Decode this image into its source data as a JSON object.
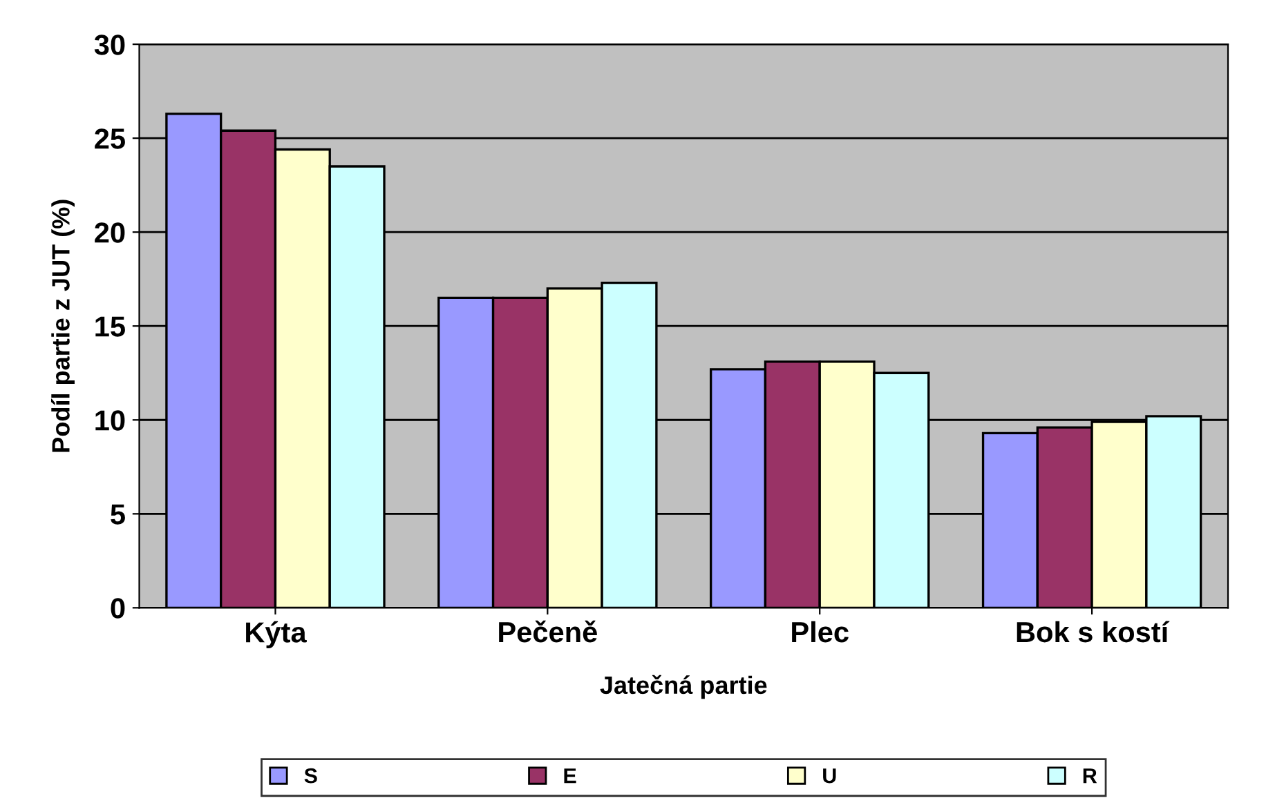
{
  "chart_data": {
    "type": "bar",
    "xlabel": "Jatečná partie",
    "ylabel": "Podíl partie z JUT (%)",
    "categories": [
      "Kýta",
      "Pečeně",
      "Plec",
      "Bok s kostí"
    ],
    "series": [
      {
        "name": "S",
        "color": "#9999ff",
        "values": [
          26.3,
          16.5,
          12.7,
          9.3
        ]
      },
      {
        "name": "E",
        "color": "#993366",
        "values": [
          25.4,
          16.5,
          13.1,
          9.6
        ]
      },
      {
        "name": "U",
        "color": "#ffffcc",
        "values": [
          24.4,
          17.0,
          13.1,
          9.9
        ]
      },
      {
        "name": "R",
        "color": "#ccffff",
        "values": [
          23.5,
          17.3,
          12.5,
          10.2
        ]
      }
    ],
    "ylim": [
      0,
      30
    ],
    "yticks": [
      0,
      5,
      10,
      15,
      20,
      25,
      30
    ],
    "grid": "y",
    "legend": "bottom"
  }
}
